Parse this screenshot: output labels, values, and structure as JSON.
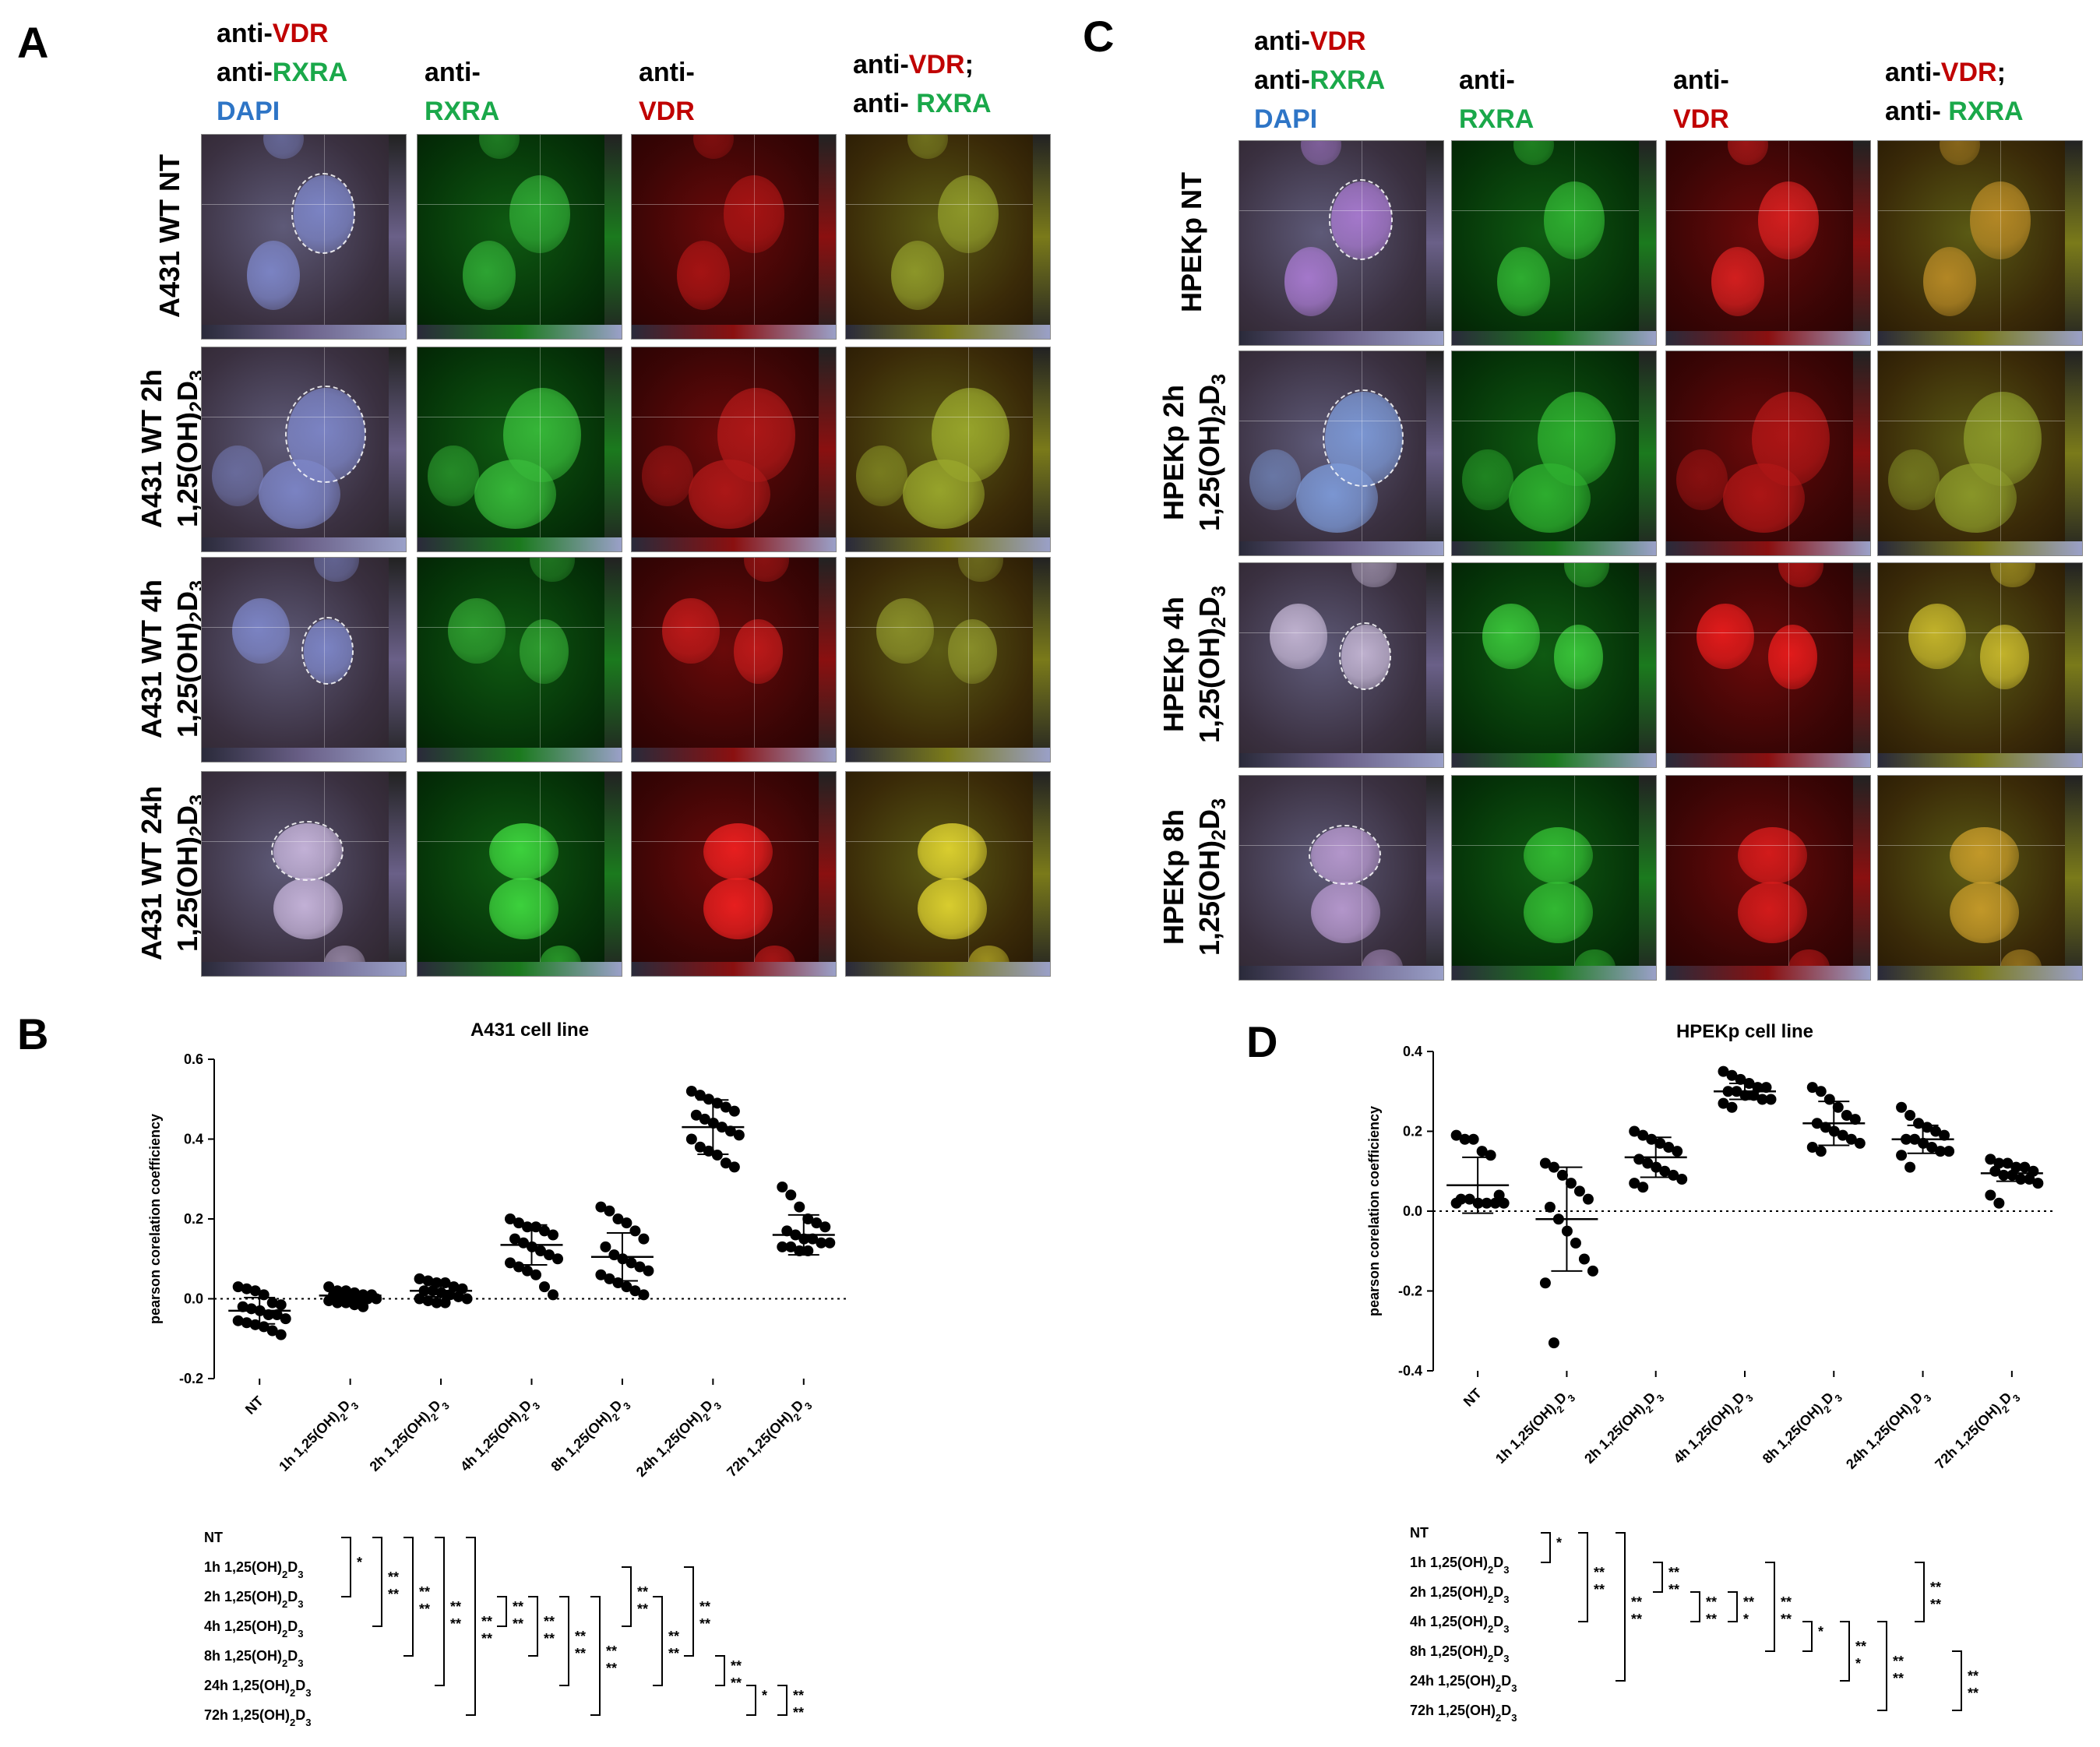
{
  "panel_letters": [
    "A",
    "B",
    "C",
    "D"
  ],
  "headers": {
    "merge": [
      [
        {
          "t": "anti-",
          "c": ""
        },
        {
          "t": "VDR",
          "c": "red"
        }
      ],
      [
        {
          "t": "anti-",
          "c": ""
        },
        {
          "t": "RXRA",
          "c": "green"
        }
      ],
      [
        {
          "t": "DAPI",
          "c": "blue"
        }
      ]
    ],
    "rxra": [
      [
        {
          "t": "anti-",
          "c": ""
        }
      ],
      [
        {
          "t": "RXRA",
          "c": "green"
        }
      ]
    ],
    "vdr": [
      [
        {
          "t": "anti-",
          "c": ""
        }
      ],
      [
        {
          "t": "VDR",
          "c": "red"
        }
      ]
    ],
    "overlay": [
      [
        {
          "t": "anti-",
          "c": ""
        },
        {
          "t": "VDR",
          "c": "red"
        },
        {
          "t": ";",
          "c": ""
        }
      ],
      [
        {
          "t": "anti- ",
          "c": ""
        },
        {
          "t": "RXRA",
          "c": "green"
        }
      ]
    ]
  },
  "rows_A": [
    [
      "A431 WT NT"
    ],
    [
      "A431 WT 2h",
      "1,25(OH)2D3"
    ],
    [
      "A431 WT 4h",
      "1,25(OH)2D3"
    ],
    [
      "A431 WT 24h",
      "1,25(OH)2D3"
    ]
  ],
  "rows_C": [
    [
      "HPEKp NT"
    ],
    [
      "HPEKp 2h",
      "1,25(OH)2D3"
    ],
    [
      "HPEKp 4h",
      "1,25(OH)2D3"
    ],
    [
      "HPEKp 8h",
      "1,25(OH)2D3"
    ]
  ],
  "colors": {
    "red_label": "#c00000",
    "green_label": "#1aa84a",
    "blue_label": "#2e75c6"
  },
  "chart_data": [
    {
      "type": "scatter",
      "panel": "B",
      "title": "A431 cell line",
      "ylabel": "pearson corelation coefficiency",
      "ylim": [
        -0.2,
        0.6
      ],
      "yticks": [
        "-0.2",
        "0.0",
        "0.2",
        "0.4",
        "0.6"
      ],
      "categories": [
        "NT",
        "1h 1,25(OH)2D3",
        "2h 1,25(OH)2D3",
        "4h 1,25(OH)2D3",
        "8h 1,25(OH)2D3",
        "24h 1,25(OH)2D3",
        "72h 1,25(OH)2D3"
      ],
      "mean": [
        -0.03,
        0.008,
        0.02,
        0.135,
        0.105,
        0.43,
        0.16
      ],
      "sd": [
        0.033,
        0.01,
        0.015,
        0.05,
        0.06,
        0.068,
        0.05
      ],
      "points": [
        [
          0.03,
          0.025,
          0.02,
          0.01,
          -0.01,
          -0.015,
          -0.02,
          -0.025,
          -0.03,
          -0.04,
          -0.04,
          -0.05,
          -0.055,
          -0.06,
          -0.065,
          -0.07,
          -0.08,
          -0.09
        ],
        [
          0.03,
          0.02,
          0.02,
          0.015,
          0.01,
          0.01,
          0.01,
          0.005,
          0.005,
          0.0,
          0.0,
          0.0,
          -0.005,
          -0.01,
          -0.01,
          -0.015,
          -0.02
        ],
        [
          0.05,
          0.045,
          0.04,
          0.04,
          0.03,
          0.025,
          0.02,
          0.02,
          0.015,
          0.01,
          0.005,
          0.0,
          0.0,
          -0.005,
          -0.01,
          -0.01
        ],
        [
          0.2,
          0.19,
          0.18,
          0.18,
          0.17,
          0.16,
          0.15,
          0.14,
          0.13,
          0.12,
          0.11,
          0.1,
          0.09,
          0.08,
          0.07,
          0.06,
          0.03,
          0.01
        ],
        [
          0.23,
          0.22,
          0.2,
          0.19,
          0.17,
          0.15,
          0.13,
          0.11,
          0.1,
          0.09,
          0.08,
          0.07,
          0.06,
          0.05,
          0.04,
          0.03,
          0.02,
          0.01
        ],
        [
          0.52,
          0.51,
          0.5,
          0.49,
          0.48,
          0.47,
          0.46,
          0.45,
          0.44,
          0.43,
          0.42,
          0.41,
          0.4,
          0.38,
          0.37,
          0.36,
          0.34,
          0.33
        ],
        [
          0.28,
          0.26,
          0.23,
          0.2,
          0.19,
          0.18,
          0.17,
          0.16,
          0.15,
          0.15,
          0.14,
          0.14,
          0.13,
          0.13,
          0.12,
          0.12
        ]
      ],
      "comparison_labels": [
        "NT",
        "1h 1,25(OH)2D3",
        "2h 1,25(OH)2D3",
        "4h 1,25(OH)2D3",
        "8h 1,25(OH)2D3",
        "24h 1,25(OH)2D3",
        "72h 1,25(OH)2D3"
      ],
      "comparisons": [
        {
          "a": 0,
          "b": 2,
          "stars": [
            "*"
          ]
        },
        {
          "a": 0,
          "b": 3,
          "stars": [
            "**",
            "**"
          ]
        },
        {
          "a": 0,
          "b": 4,
          "stars": [
            "**",
            "**"
          ]
        },
        {
          "a": 0,
          "b": 5,
          "stars": [
            "**",
            "**"
          ]
        },
        {
          "a": 0,
          "b": 6,
          "stars": [
            "**",
            "**"
          ]
        },
        {
          "a": 2,
          "b": 3,
          "stars": [
            "**",
            "**"
          ]
        },
        {
          "a": 2,
          "b": 4,
          "stars": [
            "**",
            "**"
          ]
        },
        {
          "a": 2,
          "b": 5,
          "stars": [
            "**",
            "**"
          ]
        },
        {
          "a": 2,
          "b": 6,
          "stars": [
            "**",
            "**"
          ]
        },
        {
          "a": 1,
          "b": 3,
          "stars": [
            "**",
            "**"
          ]
        },
        {
          "a": 2,
          "b": 5,
          "stars": [
            "**",
            "**"
          ]
        },
        {
          "a": 1,
          "b": 4,
          "stars": [
            "**",
            "**"
          ]
        },
        {
          "a": 4,
          "b": 5,
          "stars": [
            "**",
            "**"
          ]
        },
        {
          "a": 5,
          "b": 6,
          "stars": [
            "*"
          ]
        },
        {
          "a": 5,
          "b": 6,
          "stars": [
            "**",
            "**"
          ]
        }
      ]
    },
    {
      "type": "scatter",
      "panel": "D",
      "title": "HPEKp cell line",
      "ylabel": "pearson corelation coefficiency",
      "ylim": [
        -0.4,
        0.4
      ],
      "yticks": [
        "-0.4",
        "-0.2",
        "0.0",
        "0.2",
        "0.4"
      ],
      "categories": [
        "NT",
        "1h 1,25(OH)2D3",
        "2h 1,25(OH)2D3",
        "4h 1,25(OH)2D3",
        "8h 1,25(OH)2D3",
        "24h 1,25(OH)2D3",
        "72h 1,25(OH)2D3"
      ],
      "mean": [
        0.065,
        -0.02,
        0.135,
        0.3,
        0.22,
        0.18,
        0.095
      ],
      "sd": [
        0.07,
        0.13,
        0.05,
        0.02,
        0.055,
        0.035,
        0.02
      ],
      "points": [
        [
          0.19,
          0.18,
          0.18,
          0.15,
          0.14,
          0.04,
          0.03,
          0.03,
          0.02,
          0.02,
          0.02,
          0.02,
          0.02
        ],
        [
          0.12,
          0.11,
          0.09,
          0.07,
          0.05,
          0.03,
          0.01,
          -0.02,
          -0.05,
          -0.08,
          -0.12,
          -0.15,
          -0.18,
          -0.33
        ],
        [
          0.2,
          0.19,
          0.18,
          0.17,
          0.16,
          0.15,
          0.13,
          0.12,
          0.11,
          0.1,
          0.09,
          0.08,
          0.07,
          0.06
        ],
        [
          0.35,
          0.34,
          0.33,
          0.32,
          0.31,
          0.31,
          0.3,
          0.3,
          0.29,
          0.29,
          0.28,
          0.28,
          0.27,
          0.26
        ],
        [
          0.31,
          0.3,
          0.28,
          0.26,
          0.24,
          0.23,
          0.22,
          0.21,
          0.2,
          0.19,
          0.18,
          0.17,
          0.16,
          0.15
        ],
        [
          0.26,
          0.24,
          0.22,
          0.21,
          0.2,
          0.19,
          0.18,
          0.18,
          0.17,
          0.16,
          0.15,
          0.15,
          0.14,
          0.11
        ],
        [
          0.13,
          0.12,
          0.12,
          0.11,
          0.11,
          0.1,
          0.1,
          0.09,
          0.09,
          0.08,
          0.08,
          0.07,
          0.04,
          0.02
        ]
      ],
      "comparison_labels": [
        "NT",
        "1h 1,25(OH)2D3",
        "2h 1,25(OH)2D3",
        "4h 1,25(OH)2D3",
        "8h 1,25(OH)2D3",
        "24h 1,25(OH)2D3",
        "72h 1,25(OH)2D3"
      ],
      "comparisons": [
        {
          "a": 0,
          "b": 1,
          "stars": [
            "*"
          ]
        },
        {
          "a": 0,
          "b": 3,
          "stars": [
            "**",
            "**"
          ]
        },
        {
          "a": 0,
          "b": 5,
          "stars": [
            "**",
            "**"
          ]
        },
        {
          "a": 1,
          "b": 2,
          "stars": [
            "**",
            "**"
          ]
        },
        {
          "a": 2,
          "b": 3,
          "stars": [
            "**",
            "**"
          ]
        },
        {
          "a": 2,
          "b": 3,
          "stars": [
            "**",
            "*"
          ]
        },
        {
          "a": 1,
          "b": 4,
          "stars": [
            "**",
            "**"
          ]
        },
        {
          "a": 3,
          "b": 4,
          "stars": [
            "*"
          ]
        },
        {
          "a": 3,
          "b": 5,
          "stars": [
            "**",
            "*"
          ]
        },
        {
          "a": 3,
          "b": 6,
          "stars": [
            "**",
            "**"
          ]
        },
        {
          "a": 1,
          "b": 3,
          "stars": [
            "**",
            "**"
          ]
        },
        {
          "a": 4,
          "b": 6,
          "stars": [
            "**",
            "**"
          ]
        }
      ]
    }
  ]
}
